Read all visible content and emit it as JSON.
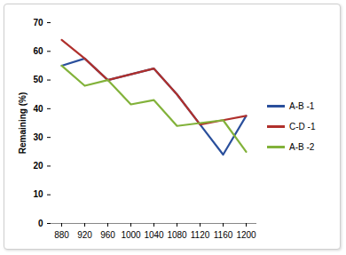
{
  "chart_data": {
    "type": "line",
    "y_label": "Remaining (%)",
    "categories": [
      "880",
      "920",
      "960",
      "1000",
      "1040",
      "1080",
      "1120",
      "1160",
      "1200"
    ],
    "series": [
      {
        "name": "A-B -1",
        "color": "#2a4f9c",
        "values": [
          55,
          57.5,
          50,
          52,
          54,
          45,
          34.5,
          24,
          37.5
        ]
      },
      {
        "name": "C-D -1",
        "color": "#b0302c",
        "values": [
          64,
          57.5,
          50,
          52,
          54,
          45,
          34.5,
          36,
          37.5
        ]
      },
      {
        "name": "A-B -2",
        "color": "#82b23a",
        "values": [
          55,
          48,
          50,
          41.5,
          43,
          34,
          35,
          36,
          25
        ]
      }
    ],
    "ylim": [
      0,
      70
    ],
    "yticks": [
      0,
      10,
      20,
      30,
      40,
      50,
      60,
      70
    ],
    "grid": false,
    "legend": "right"
  }
}
